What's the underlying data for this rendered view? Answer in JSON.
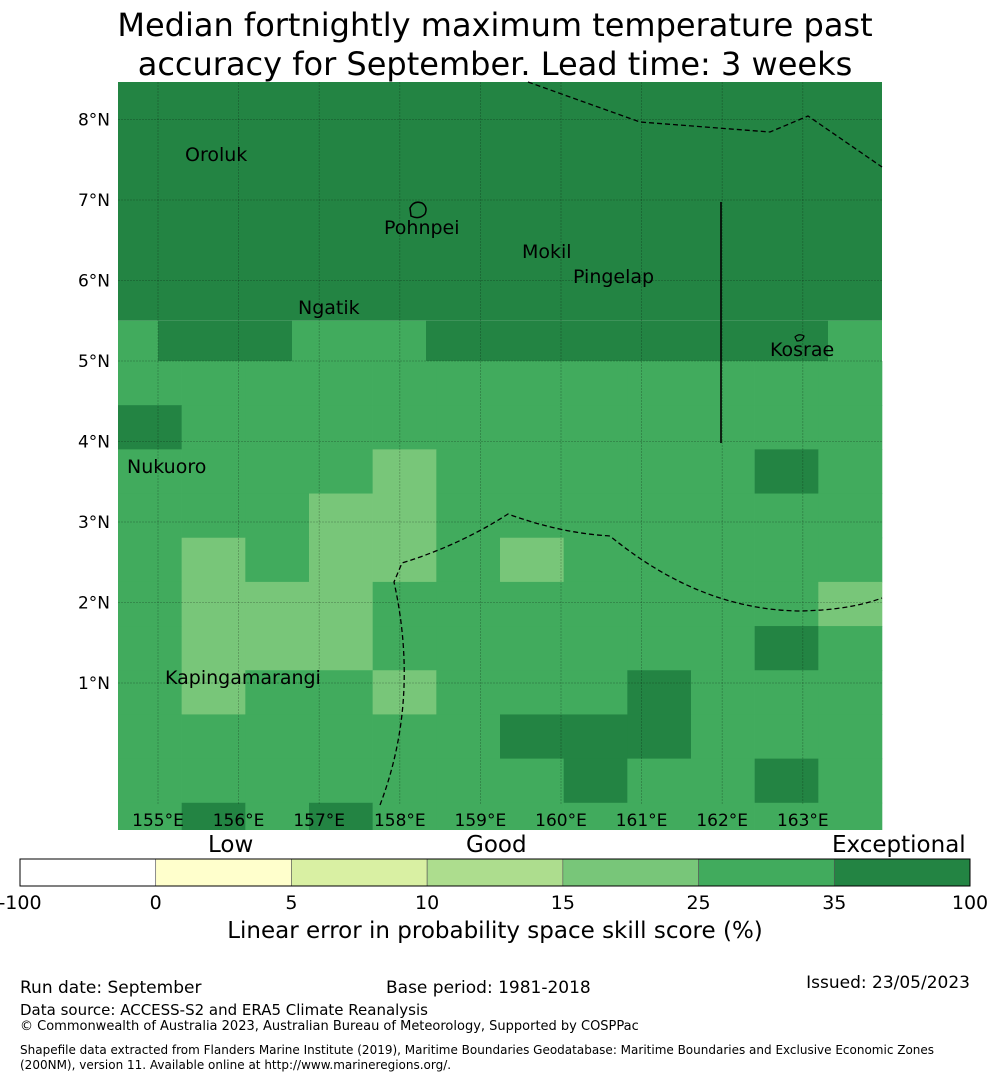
{
  "title_line1": "Median fortnightly maximum temperature past",
  "title_line2": "accuracy for September. Lead time: 3 weeks",
  "map": {
    "lon_labels": [
      "155°E",
      "156°E",
      "157°E",
      "158°E",
      "159°E",
      "160°E",
      "161°E",
      "162°E",
      "163°E"
    ],
    "lat_labels": [
      "8°N",
      "7°N",
      "6°N",
      "5°N",
      "4°N",
      "3°N",
      "2°N",
      "1°N"
    ],
    "islands": [
      {
        "name": "Oroluk",
        "lon": 154.5,
        "lat": 7.5
      },
      {
        "name": "Pohnpei",
        "lon": 158.2,
        "lat": 6.85
      },
      {
        "name": "Mokil",
        "lon": 159.8,
        "lat": 6.65
      },
      {
        "name": "Pingelap",
        "lon": 160.7,
        "lat": 6.2
      },
      {
        "name": "Ngatik",
        "lon": 157.3,
        "lat": 5.8
      },
      {
        "name": "Kosrae",
        "lon": 163.0,
        "lat": 5.3
      },
      {
        "name": "Nukuoro",
        "lon": 154.8,
        "lat": 3.85
      },
      {
        "name": "Kapingamarangi",
        "lon": 154.8,
        "lat": 1.07
      }
    ],
    "class_colors": {
      "3": "#aade90",
      "4": "#78c679",
      "5": "#41ab5d",
      "6": "#238443"
    },
    "grid": [
      "666666666666666666666666666666666666",
      "666666666666666666666666666666666666",
      "666666666666666666666666666666666666",
      "666666666666666666666666666666666666",
      "666666666666666666666666666666666666",
      "666666666666666666666666666666666666",
      "666666666666666666666666666666666666",
      "666666666666666666666666666666666666",
      "666666666666666666666666666666666666",
      "666666666666666666666666666666666666",
      "666666666666666666666666666666666666",
      "666666666666666666666666666666666666",
      "666666666666666666666666666666666666",
      "666666666666666666666666666666666666",
      "666666666666666666666666666666666666",
      "666666666666666666666666666666666666",
      "666666666666666666666666666666666666",
      "666666666666666666666666666666666666",
      "666666666666666666666666666666666666",
      "666666666666666666666666666666666666",
      "666666666666666666666666666666666666",
      "666666666666666666666666666666666666",
      "666666666666666666666666666666666666",
      "666666666666666666666666666666666666",
      "666666666666666666666666666666666666",
      "666666666666666666666666666666666666",
      "666666666666666666666666666666666666",
      "666666666666666666666666666666666666",
      "666666666666666666666666666666666666",
      "666666666666666666666666666666666666",
      "666666666666666666666666666666666666",
      "666666666666666666666666666666666666",
      "666666666666666666666666666666666666",
      "666666666666666666666666666666666666",
      "666666666666666666666666666666666666",
      "666666666666666666666666666666666666",
      "666666666666666666666666666666666666",
      "666666666666666666666666666666666666",
      "666666666666666666666666666666666666",
      "666666666666666666666666666666666666",
      "666666666666666666666666666666666666",
      "666666666666666666666666666666666666",
      "666666666666666666666666666666666666",
      "666666666666666666666666666666666666",
      "666666666666666666666666666666666666",
      "666666666666666666666666666666666666",
      "666666666666666666666666666666666666",
      "666666666666666666666666666666666666",
      "666666666666666666666666666666666666",
      "666666666666666666666666666666666666"
    ],
    "cells": [
      [
        5,
        5,
        5,
        5,
        5,
        5,
        5,
        5,
        5,
        5,
        5,
        5
      ],
      [
        6,
        5,
        5,
        5,
        5,
        5,
        5,
        5,
        5,
        5,
        5,
        5
      ],
      [
        5,
        5,
        5,
        5,
        4,
        5,
        5,
        5,
        5,
        5,
        6,
        5
      ],
      [
        5,
        5,
        5,
        4,
        4,
        5,
        5,
        5,
        5,
        5,
        5,
        5
      ],
      [
        5,
        4,
        5,
        4,
        4,
        5,
        4,
        5,
        5,
        5,
        5,
        5
      ],
      [
        5,
        4,
        4,
        4,
        5,
        5,
        5,
        5,
        5,
        5,
        5,
        4
      ],
      [
        5,
        4,
        4,
        4,
        5,
        5,
        5,
        5,
        5,
        5,
        6,
        5
      ],
      [
        5,
        4,
        5,
        5,
        4,
        5,
        5,
        5,
        6,
        5,
        5,
        5
      ],
      [
        5,
        5,
        5,
        5,
        5,
        5,
        6,
        6,
        6,
        5,
        5,
        5
      ],
      [
        5,
        5,
        5,
        5,
        5,
        5,
        5,
        6,
        5,
        5,
        6,
        5
      ],
      [
        5,
        6,
        5,
        6,
        5,
        5,
        5,
        5,
        5,
        5,
        5,
        5
      ]
    ],
    "top_rows_class": 6
  },
  "categories": {
    "low": "Low",
    "good": "Good",
    "exceptional": "Exceptional"
  },
  "colorbar": {
    "ticks": [
      "-100",
      "0",
      "5",
      "10",
      "15",
      "25",
      "35",
      "100"
    ],
    "colors": [
      "#ffffff",
      "#ffffcc",
      "#d9f0a3",
      "#addd8e",
      "#78c679",
      "#41ab5d",
      "#238443"
    ],
    "label": "Linear error in probability space skill score (%)"
  },
  "footer": {
    "run_date": "Run date: September",
    "base_period": "Base period: 1981-2018",
    "issued": "Issued: 23/05/2023",
    "data_source": "Data source: ACCESS-S2 and ERA5 Climate Reanalysis",
    "copyright": "© Commonwealth of Australia 2023, Australian Bureau of Meteorology, Supported by COSPPac",
    "shapefile": "Shapefile data extracted from Flanders Marine Institute (2019), Maritime Boundaries Geodatabase: Maritime Boundaries and Exclusive Economic Zones (200NM), version 11. Available online at http://www.marineregions.org/."
  }
}
